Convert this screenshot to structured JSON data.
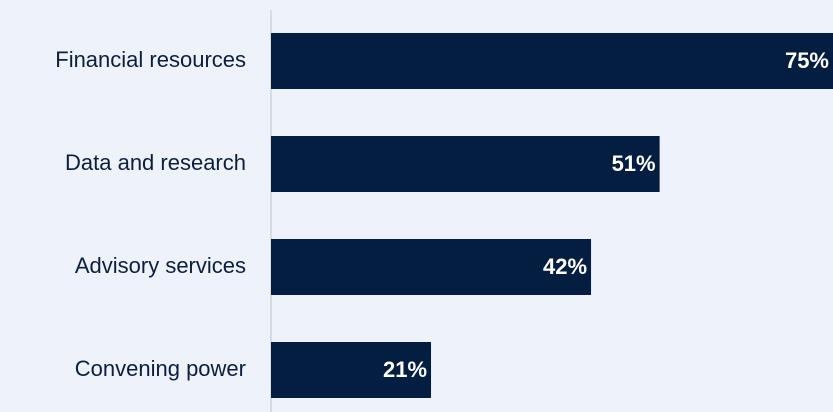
{
  "chart_data": {
    "type": "bar",
    "orientation": "horizontal",
    "categories": [
      "Financial resources",
      "Data and research",
      "Advisory services",
      "Convening power"
    ],
    "values": [
      75,
      51,
      42,
      21
    ],
    "value_labels": [
      "75%",
      "51%",
      "42%",
      "21%"
    ],
    "color": "#041e42"
  }
}
